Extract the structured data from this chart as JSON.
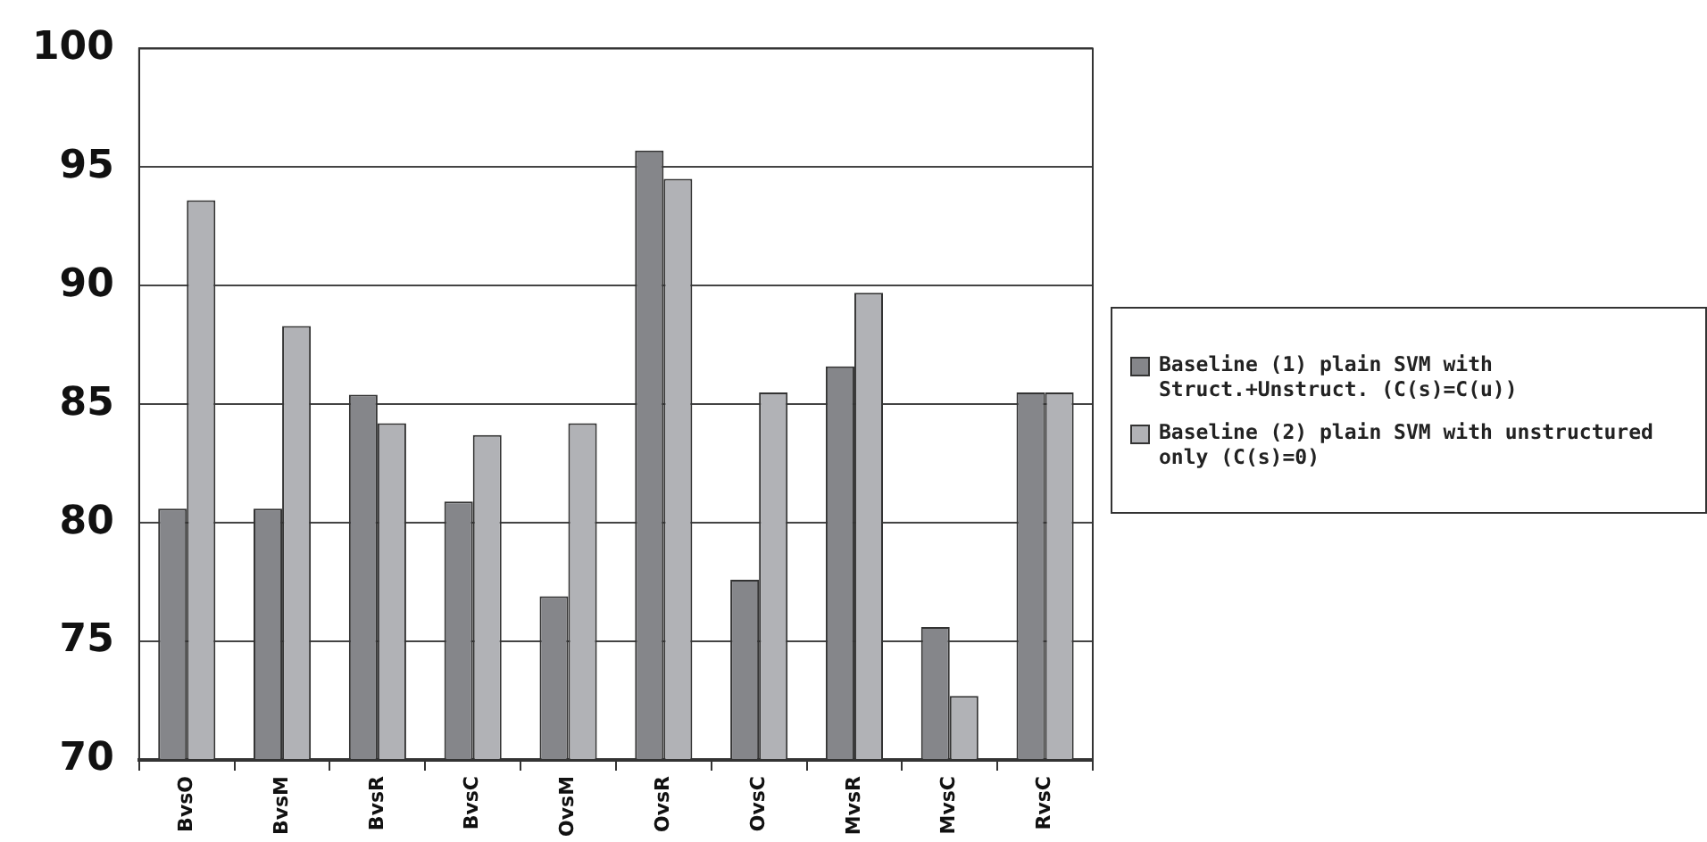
{
  "chart_data": {
    "type": "bar",
    "categories": [
      "BvsO",
      "BvsM",
      "BvsR",
      "BvsC",
      "OvsM",
      "OvsR",
      "OvsC",
      "MvsR",
      "MvsC",
      "RvsC"
    ],
    "series": [
      {
        "name": "Baseline (1) plain SVM with Struct.+Unstruct. (C(s)=C(u))",
        "color": "#85868a",
        "values": [
          80.6,
          80.6,
          85.4,
          80.9,
          76.9,
          95.7,
          77.6,
          86.6,
          75.6,
          85.5
        ]
      },
      {
        "name": "Baseline (2) plain SVM with unstructured only (C(s)=0)",
        "color": "#b1b2b6",
        "values": [
          93.6,
          88.3,
          84.2,
          83.7,
          84.2,
          94.5,
          85.5,
          89.7,
          72.7,
          85.5
        ]
      }
    ],
    "ylim": [
      70,
      100
    ],
    "yticks": [
      70,
      75,
      80,
      85,
      90,
      95,
      100
    ],
    "grid": "y",
    "legend": "right"
  }
}
